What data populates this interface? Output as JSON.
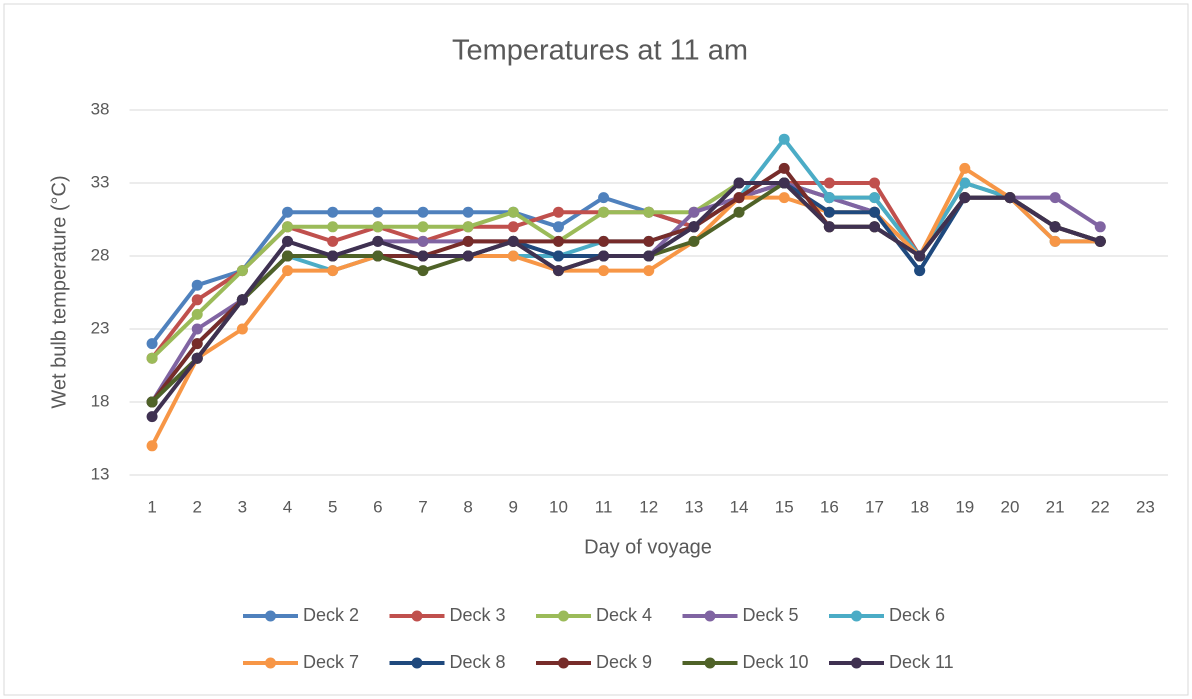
{
  "chart_data": {
    "type": "line",
    "title": "Temperatures at 11 am",
    "x_label": "Day of voyage",
    "y_label": "Wet bulb temperature (°C)",
    "categories": [
      "1",
      "2",
      "3",
      "4",
      "5",
      "6",
      "7",
      "8",
      "9",
      "10",
      "11",
      "12",
      "13",
      "14",
      "15",
      "16",
      "17",
      "18",
      "19",
      "20",
      "21",
      "22",
      "23"
    ],
    "ylim": [
      13,
      38
    ],
    "yticks": [
      13,
      18,
      23,
      28,
      33,
      38
    ],
    "grid": true,
    "legend": "bottom",
    "series": [
      {
        "name": "Deck 2",
        "color": "#4f81bd",
        "values": [
          22,
          26,
          27,
          31,
          31,
          31,
          31,
          31,
          31,
          30,
          32,
          31,
          30,
          32,
          33,
          32,
          31,
          27,
          32,
          32,
          30,
          29,
          null
        ]
      },
      {
        "name": "Deck 3",
        "color": "#c0504d",
        "values": [
          21,
          25,
          27,
          30,
          29,
          30,
          29,
          30,
          30,
          31,
          31,
          31,
          30,
          32,
          33,
          33,
          33,
          28,
          32,
          32,
          30,
          29,
          null
        ]
      },
      {
        "name": "Deck 4",
        "color": "#9bbb59",
        "values": [
          21,
          24,
          27,
          30,
          30,
          30,
          30,
          30,
          31,
          29,
          31,
          31,
          31,
          33,
          33,
          32,
          32,
          28,
          33,
          32,
          30,
          29,
          null
        ]
      },
      {
        "name": "Deck 5",
        "color": "#8064a2",
        "values": [
          18,
          23,
          25,
          29,
          28,
          29,
          29,
          29,
          29,
          28,
          28,
          28,
          31,
          32,
          33,
          32,
          31,
          28,
          32,
          32,
          32,
          30,
          null
        ]
      },
      {
        "name": "Deck 6",
        "color": "#4bacc6",
        "values": [
          18,
          22,
          25,
          28,
          27,
          28,
          28,
          28,
          28,
          28,
          29,
          29,
          30,
          32,
          36,
          32,
          32,
          28,
          33,
          32,
          29,
          29,
          null
        ]
      },
      {
        "name": "Deck 7",
        "color": "#f79646",
        "values": [
          15,
          21,
          23,
          27,
          27,
          28,
          28,
          28,
          28,
          27,
          27,
          27,
          29,
          32,
          32,
          31,
          31,
          28,
          34,
          32,
          29,
          29,
          null
        ]
      },
      {
        "name": "Deck 8",
        "color": "#1f497d",
        "values": [
          18,
          21,
          25,
          28,
          28,
          28,
          28,
          28,
          29,
          28,
          28,
          28,
          30,
          33,
          33,
          31,
          31,
          27,
          32,
          32,
          30,
          29,
          null
        ]
      },
      {
        "name": "Deck 9",
        "color": "#772c2a",
        "values": [
          18,
          22,
          25,
          28,
          28,
          28,
          28,
          29,
          29,
          29,
          29,
          29,
          30,
          32,
          34,
          30,
          30,
          28,
          32,
          32,
          30,
          29,
          null
        ]
      },
      {
        "name": "Deck 10",
        "color": "#4f6228",
        "values": [
          18,
          21,
          25,
          28,
          28,
          28,
          27,
          28,
          29,
          27,
          28,
          28,
          29,
          31,
          33,
          30,
          30,
          28,
          32,
          32,
          30,
          29,
          null
        ]
      },
      {
        "name": "Deck 11",
        "color": "#3f3151",
        "values": [
          17,
          21,
          25,
          29,
          28,
          29,
          28,
          28,
          29,
          27,
          28,
          28,
          30,
          33,
          33,
          30,
          30,
          28,
          32,
          32,
          30,
          29,
          null
        ]
      }
    ]
  }
}
